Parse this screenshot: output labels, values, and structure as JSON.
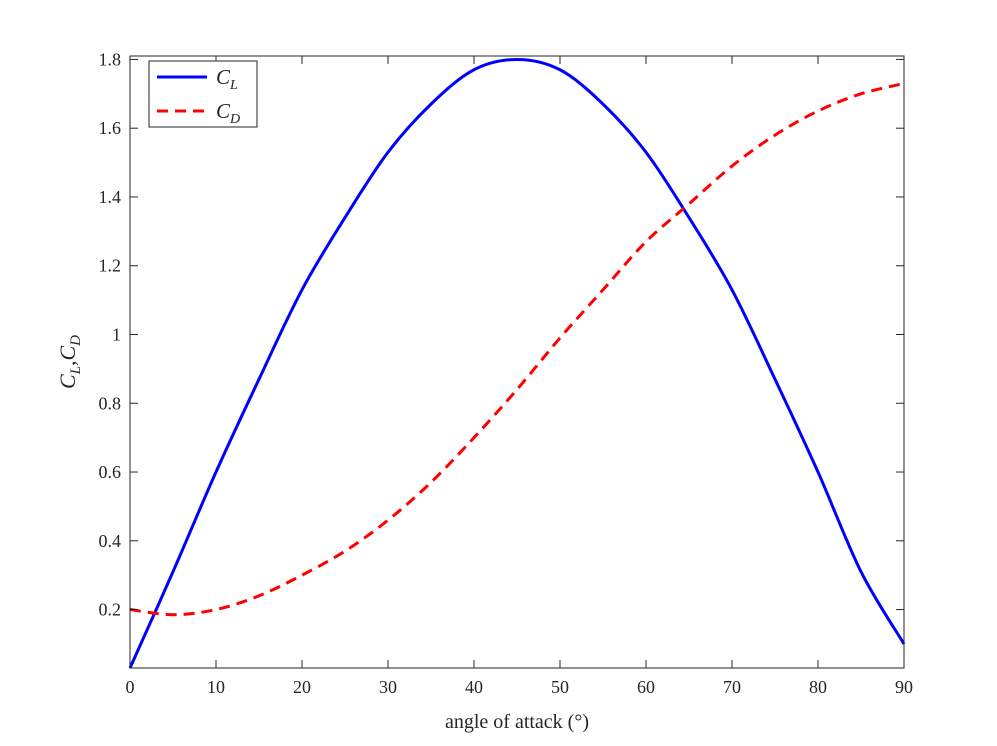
{
  "chart_data": {
    "type": "line",
    "title": "",
    "xlabel": "angle of attack (°)",
    "ylabel": {
      "parts": [
        {
          "base": "C",
          "sub": "L"
        },
        {
          "base": "C",
          "sub": "D"
        }
      ],
      "separator": ","
    },
    "xlim": [
      0,
      90
    ],
    "ylim": [
      0.03,
      1.81
    ],
    "xticks": [
      0,
      10,
      20,
      30,
      40,
      50,
      60,
      70,
      80,
      90
    ],
    "xtick_labels": [
      "0",
      "10",
      "20",
      "30",
      "40",
      "50",
      "60",
      "70",
      "80",
      "90"
    ],
    "yticks": [
      0.2,
      0.4,
      0.6,
      0.8,
      1.0,
      1.2,
      1.4,
      1.6,
      1.8
    ],
    "ytick_labels": [
      "0.2",
      "0.4",
      "0.6",
      "0.8",
      "1",
      "1.2",
      "1.4",
      "1.6",
      "1.8"
    ],
    "grid": false,
    "legend_position": "top-left",
    "x": [
      0,
      5,
      10,
      15,
      20,
      25,
      30,
      35,
      40,
      45,
      50,
      55,
      60,
      65,
      70,
      75,
      80,
      85,
      90
    ],
    "series": [
      {
        "name": {
          "base": "C",
          "sub": "L"
        },
        "color": "#0000ff",
        "line_style": "solid",
        "values": [
          0.03,
          0.31,
          0.6,
          0.87,
          1.13,
          1.34,
          1.53,
          1.67,
          1.77,
          1.8,
          1.77,
          1.67,
          1.53,
          1.34,
          1.13,
          0.87,
          0.6,
          0.31,
          0.1
        ]
      },
      {
        "name": {
          "base": "C",
          "sub": "D"
        },
        "color": "#ff0000",
        "line_style": "dashed",
        "values": [
          0.2,
          0.185,
          0.2,
          0.24,
          0.3,
          0.37,
          0.46,
          0.57,
          0.7,
          0.84,
          0.99,
          1.13,
          1.27,
          1.38,
          1.49,
          1.58,
          1.65,
          1.7,
          1.73
        ]
      }
    ]
  }
}
